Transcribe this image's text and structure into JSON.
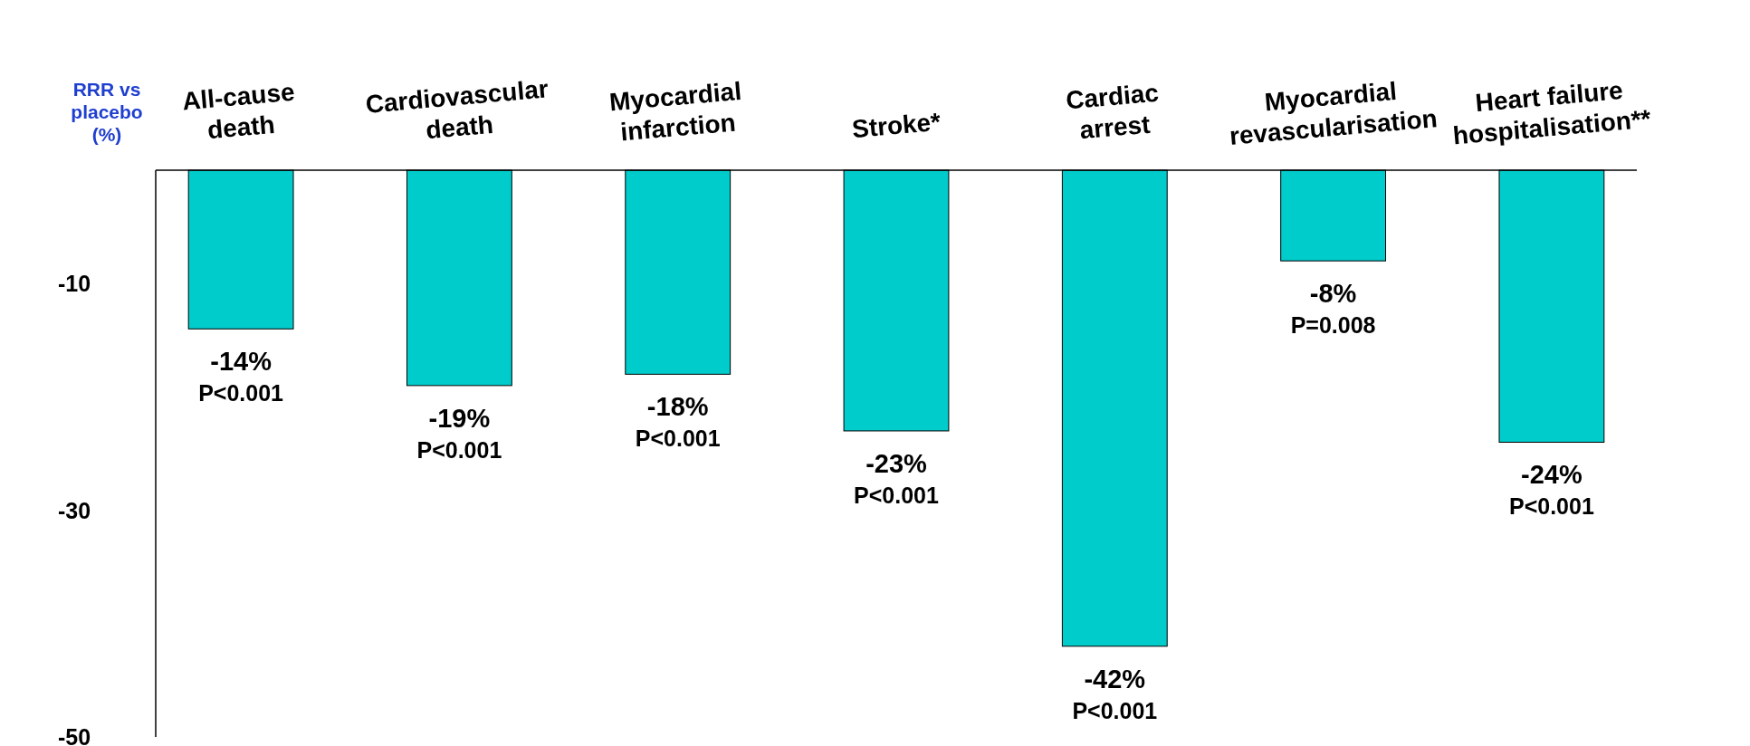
{
  "chart_data": {
    "type": "bar",
    "ylabel": "RRR vs\nplacebo\n(%)",
    "categories": [
      "All-cause\ndeath",
      "Cardiovascular\ndeath",
      "Myocardial\ninfarction",
      "Stroke*",
      "Cardiac\narrest",
      "Myocardial\nrevascularisation",
      "Heart failure\nhospitalisation**"
    ],
    "values": [
      -14,
      -19,
      -18,
      -23,
      -42,
      -8,
      -24
    ],
    "value_labels": [
      "-14%",
      "-19%",
      "-18%",
      "-23%",
      "-42%",
      "-8%",
      "-24%"
    ],
    "color": "#00cccc",
    "ylim": [
      -50,
      0
    ],
    "yticks": [
      -10,
      -30,
      -50
    ],
    "grid": false,
    "annotations": [
      {
        "text": "P<0.001",
        "x": "All-cause\ndeath",
        "y": -14
      },
      {
        "text": "P<0.001",
        "x": "Cardiovascular\ndeath",
        "y": -19
      },
      {
        "text": "P<0.001",
        "x": "Myocardial\ninfarction",
        "y": -18
      },
      {
        "text": "P<0.001",
        "x": "Stroke*",
        "y": -23
      },
      {
        "text": "P<0.001",
        "x": "Cardiac\narrest",
        "y": -42
      },
      {
        "text": "P=0.008",
        "x": "Myocardial\nrevascularisation",
        "y": -8
      },
      {
        "text": "P<0.001",
        "x": "Heart failure\nhospitalisation**",
        "y": -24
      }
    ]
  }
}
